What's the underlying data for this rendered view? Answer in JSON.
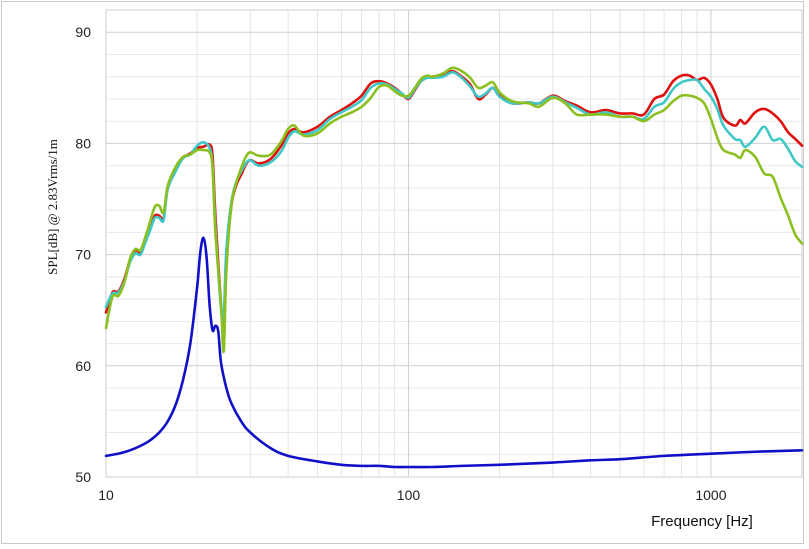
{
  "chart_data": {
    "type": "line",
    "xscale": "log",
    "xlim": [
      10,
      2000
    ],
    "ylim": [
      50,
      92
    ],
    "xlabel": "Frequency [Hz]",
    "ylabel": "SPL[dB] @ 2.83Vrms/1m",
    "x_ticks": [
      10,
      100,
      1000
    ],
    "x_tick_labels": [
      "10",
      "100",
      "1000"
    ],
    "y_ticks": [
      50,
      60,
      70,
      80,
      90
    ],
    "y_tick_labels": [
      "50",
      "60",
      "70",
      "80",
      "90"
    ],
    "grid": true,
    "series": [
      {
        "color": "#e01010",
        "points": [
          [
            10,
            64.8
          ],
          [
            10.5,
            66.6
          ],
          [
            11,
            66.7
          ],
          [
            11.5,
            67.8
          ],
          [
            12,
            69.5
          ],
          [
            12.5,
            70.4
          ],
          [
            13,
            70.2
          ],
          [
            13.5,
            71.3
          ],
          [
            14,
            72.4
          ],
          [
            14.5,
            73.5
          ],
          [
            15,
            73.5
          ],
          [
            15.5,
            73.3
          ],
          [
            16,
            76.0
          ],
          [
            17,
            77.7
          ],
          [
            18,
            78.7
          ],
          [
            19,
            79.1
          ],
          [
            20,
            79.6
          ],
          [
            21,
            79.7
          ],
          [
            22,
            79.9
          ],
          [
            22.5,
            78.9
          ],
          [
            23,
            73.5
          ],
          [
            24,
            65.5
          ],
          [
            24.5,
            63.8
          ],
          [
            25,
            70.0
          ],
          [
            26,
            74.5
          ],
          [
            27,
            76.3
          ],
          [
            28,
            77.2
          ],
          [
            29,
            78.1
          ],
          [
            30,
            78.5
          ],
          [
            32,
            78.2
          ],
          [
            35,
            78.6
          ],
          [
            38,
            79.8
          ],
          [
            40,
            80.9
          ],
          [
            42,
            81.3
          ],
          [
            45,
            81.0
          ],
          [
            50,
            81.5
          ],
          [
            55,
            82.4
          ],
          [
            60,
            83.0
          ],
          [
            65,
            83.6
          ],
          [
            70,
            84.3
          ],
          [
            75,
            85.4
          ],
          [
            80,
            85.6
          ],
          [
            85,
            85.4
          ],
          [
            90,
            85.0
          ],
          [
            95,
            84.5
          ],
          [
            100,
            84.0
          ],
          [
            105,
            84.8
          ],
          [
            110,
            85.6
          ],
          [
            115,
            85.9
          ],
          [
            120,
            86.0
          ],
          [
            130,
            86.2
          ],
          [
            140,
            86.5
          ],
          [
            150,
            86.0
          ],
          [
            160,
            85.3
          ],
          [
            170,
            84.0
          ],
          [
            180,
            84.4
          ],
          [
            190,
            85.0
          ],
          [
            200,
            84.3
          ],
          [
            220,
            83.6
          ],
          [
            250,
            83.7
          ],
          [
            270,
            83.6
          ],
          [
            300,
            84.3
          ],
          [
            330,
            83.8
          ],
          [
            360,
            83.4
          ],
          [
            400,
            82.8
          ],
          [
            450,
            83.0
          ],
          [
            500,
            82.7
          ],
          [
            550,
            82.7
          ],
          [
            600,
            82.6
          ],
          [
            650,
            84.0
          ],
          [
            700,
            84.4
          ],
          [
            750,
            85.6
          ],
          [
            800,
            86.1
          ],
          [
            850,
            86.1
          ],
          [
            900,
            85.7
          ],
          [
            950,
            85.9
          ],
          [
            1000,
            85.3
          ],
          [
            1050,
            84.0
          ],
          [
            1100,
            82.3
          ],
          [
            1200,
            81.6
          ],
          [
            1250,
            82.1
          ],
          [
            1300,
            81.8
          ],
          [
            1400,
            82.8
          ],
          [
            1500,
            83.1
          ],
          [
            1600,
            82.7
          ],
          [
            1700,
            82.0
          ],
          [
            1800,
            81.0
          ],
          [
            1900,
            80.4
          ],
          [
            2000,
            79.8
          ]
        ]
      },
      {
        "color": "#40c8c8",
        "points": [
          [
            10,
            65.3
          ],
          [
            10.5,
            66.5
          ],
          [
            11,
            66.6
          ],
          [
            11.5,
            67.6
          ],
          [
            12,
            69.3
          ],
          [
            12.5,
            70.1
          ],
          [
            13,
            70.0
          ],
          [
            13.5,
            71.1
          ],
          [
            14,
            72.2
          ],
          [
            14.5,
            73.3
          ],
          [
            15,
            73.3
          ],
          [
            15.5,
            73.1
          ],
          [
            16,
            75.9
          ],
          [
            17,
            77.5
          ],
          [
            18,
            78.7
          ],
          [
            19,
            79.0
          ],
          [
            20,
            79.8
          ],
          [
            21,
            80.1
          ],
          [
            22,
            79.6
          ],
          [
            22.5,
            78.0
          ],
          [
            23,
            72.5
          ],
          [
            24,
            65.2
          ],
          [
            24.5,
            64.5
          ],
          [
            25,
            70.5
          ],
          [
            26,
            74.8
          ],
          [
            27,
            76.6
          ],
          [
            28,
            77.5
          ],
          [
            29,
            78.2
          ],
          [
            30,
            78.5
          ],
          [
            32,
            78.0
          ],
          [
            35,
            78.3
          ],
          [
            38,
            79.3
          ],
          [
            40,
            80.5
          ],
          [
            42,
            81.1
          ],
          [
            45,
            80.8
          ],
          [
            50,
            81.2
          ],
          [
            55,
            82.2
          ],
          [
            60,
            82.8
          ],
          [
            65,
            83.3
          ],
          [
            70,
            83.9
          ],
          [
            75,
            85.0
          ],
          [
            80,
            85.4
          ],
          [
            85,
            85.3
          ],
          [
            90,
            84.9
          ],
          [
            95,
            84.5
          ],
          [
            100,
            84.1
          ],
          [
            105,
            84.9
          ],
          [
            110,
            85.6
          ],
          [
            115,
            85.9
          ],
          [
            120,
            85.9
          ],
          [
            130,
            86.0
          ],
          [
            140,
            86.4
          ],
          [
            150,
            85.9
          ],
          [
            160,
            85.1
          ],
          [
            170,
            84.2
          ],
          [
            180,
            84.5
          ],
          [
            190,
            85.0
          ],
          [
            200,
            84.2
          ],
          [
            220,
            83.6
          ],
          [
            250,
            83.7
          ],
          [
            270,
            83.6
          ],
          [
            300,
            84.2
          ],
          [
            330,
            83.7
          ],
          [
            360,
            83.2
          ],
          [
            400,
            82.6
          ],
          [
            450,
            82.8
          ],
          [
            500,
            82.4
          ],
          [
            550,
            82.4
          ],
          [
            600,
            82.2
          ],
          [
            650,
            83.3
          ],
          [
            700,
            83.7
          ],
          [
            750,
            84.9
          ],
          [
            800,
            85.5
          ],
          [
            850,
            85.7
          ],
          [
            900,
            85.7
          ],
          [
            950,
            84.9
          ],
          [
            1000,
            84.2
          ],
          [
            1050,
            83.1
          ],
          [
            1100,
            81.6
          ],
          [
            1200,
            80.4
          ],
          [
            1250,
            80.3
          ],
          [
            1300,
            79.7
          ],
          [
            1400,
            80.5
          ],
          [
            1500,
            81.5
          ],
          [
            1600,
            80.3
          ],
          [
            1700,
            80.4
          ],
          [
            1800,
            79.5
          ],
          [
            1900,
            78.4
          ],
          [
            2000,
            77.9
          ]
        ]
      },
      {
        "color": "#8cc020",
        "points": [
          [
            10,
            63.4
          ],
          [
            10.5,
            66.2
          ],
          [
            11,
            66.3
          ],
          [
            11.5,
            67.5
          ],
          [
            12,
            69.6
          ],
          [
            12.5,
            70.5
          ],
          [
            13,
            70.4
          ],
          [
            13.5,
            71.6
          ],
          [
            14,
            73.0
          ],
          [
            14.5,
            74.3
          ],
          [
            15,
            74.4
          ],
          [
            15.5,
            73.8
          ],
          [
            16,
            76.2
          ],
          [
            17,
            77.9
          ],
          [
            18,
            78.8
          ],
          [
            19,
            79.0
          ],
          [
            20,
            79.4
          ],
          [
            21,
            79.4
          ],
          [
            22,
            79.2
          ],
          [
            22.5,
            77.8
          ],
          [
            23,
            72.0
          ],
          [
            24,
            65.5
          ],
          [
            24.5,
            61.3
          ],
          [
            25,
            68.5
          ],
          [
            26,
            74.5
          ],
          [
            27,
            76.5
          ],
          [
            28,
            77.8
          ],
          [
            29,
            78.8
          ],
          [
            30,
            79.2
          ],
          [
            32,
            78.9
          ],
          [
            35,
            79.0
          ],
          [
            38,
            80.2
          ],
          [
            40,
            81.3
          ],
          [
            42,
            81.6
          ],
          [
            45,
            80.7
          ],
          [
            50,
            80.9
          ],
          [
            55,
            81.8
          ],
          [
            60,
            82.4
          ],
          [
            65,
            82.8
          ],
          [
            70,
            83.3
          ],
          [
            75,
            84.1
          ],
          [
            80,
            85.1
          ],
          [
            85,
            85.2
          ],
          [
            90,
            84.7
          ],
          [
            95,
            84.3
          ],
          [
            100,
            84.3
          ],
          [
            105,
            85.0
          ],
          [
            110,
            85.8
          ],
          [
            115,
            86.1
          ],
          [
            120,
            86.0
          ],
          [
            130,
            86.3
          ],
          [
            140,
            86.8
          ],
          [
            150,
            86.5
          ],
          [
            160,
            85.9
          ],
          [
            170,
            85.0
          ],
          [
            180,
            85.2
          ],
          [
            190,
            85.5
          ],
          [
            200,
            84.6
          ],
          [
            220,
            83.8
          ],
          [
            250,
            83.6
          ],
          [
            270,
            83.3
          ],
          [
            300,
            84.1
          ],
          [
            330,
            83.6
          ],
          [
            360,
            82.6
          ],
          [
            400,
            82.6
          ],
          [
            450,
            82.6
          ],
          [
            500,
            82.4
          ],
          [
            550,
            82.4
          ],
          [
            600,
            82.0
          ],
          [
            650,
            82.6
          ],
          [
            700,
            83.0
          ],
          [
            750,
            83.8
          ],
          [
            800,
            84.3
          ],
          [
            850,
            84.3
          ],
          [
            900,
            84.1
          ],
          [
            950,
            83.6
          ],
          [
            1000,
            82.2
          ],
          [
            1050,
            80.5
          ],
          [
            1100,
            79.4
          ],
          [
            1200,
            79.0
          ],
          [
            1250,
            78.7
          ],
          [
            1300,
            79.4
          ],
          [
            1400,
            78.8
          ],
          [
            1500,
            77.3
          ],
          [
            1600,
            77.0
          ],
          [
            1700,
            75.1
          ],
          [
            1800,
            73.5
          ],
          [
            1900,
            71.8
          ],
          [
            2000,
            71.0
          ]
        ]
      },
      {
        "color": "#1010c8",
        "points": [
          [
            10,
            51.9
          ],
          [
            11,
            52.1
          ],
          [
            12,
            52.4
          ],
          [
            13,
            52.8
          ],
          [
            14,
            53.3
          ],
          [
            15,
            54.0
          ],
          [
            16,
            55.0
          ],
          [
            17,
            56.5
          ],
          [
            18,
            58.8
          ],
          [
            19,
            62.0
          ],
          [
            20,
            67.0
          ],
          [
            20.5,
            70.2
          ],
          [
            21,
            71.5
          ],
          [
            21.5,
            69.8
          ],
          [
            22,
            65.5
          ],
          [
            22.5,
            63.2
          ],
          [
            23,
            63.6
          ],
          [
            23.5,
            63.1
          ],
          [
            24,
            60.3
          ],
          [
            25,
            58.0
          ],
          [
            26,
            56.6
          ],
          [
            28,
            55.0
          ],
          [
            30,
            54.0
          ],
          [
            35,
            52.6
          ],
          [
            40,
            51.9
          ],
          [
            50,
            51.4
          ],
          [
            60,
            51.1
          ],
          [
            70,
            51.0
          ],
          [
            80,
            51.0
          ],
          [
            90,
            50.9
          ],
          [
            100,
            50.9
          ],
          [
            120,
            50.9
          ],
          [
            150,
            51.0
          ],
          [
            200,
            51.1
          ],
          [
            300,
            51.3
          ],
          [
            400,
            51.5
          ],
          [
            500,
            51.6
          ],
          [
            700,
            51.9
          ],
          [
            1000,
            52.1
          ],
          [
            1500,
            52.3
          ],
          [
            2000,
            52.4
          ]
        ]
      }
    ]
  }
}
